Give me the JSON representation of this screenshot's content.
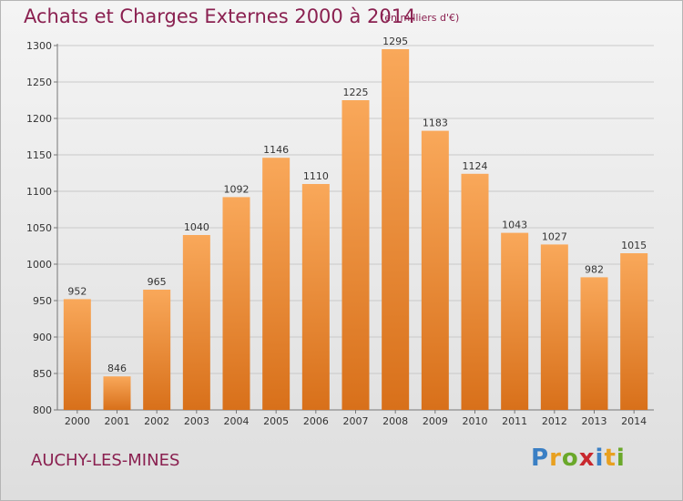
{
  "header": {
    "title": "Achats et Charges Externes 2000 à 2014",
    "subtitle": "(en milliers d'€)"
  },
  "footer": {
    "location": "AUCHY-LES-MINES",
    "logo": {
      "p": "P",
      "r": "r",
      "o": "o",
      "x": "x",
      "i1": "i",
      "t": "t",
      "i2": "i"
    }
  },
  "colors": {
    "bar_top": "#f9a85a",
    "bar_bottom": "#d8701a",
    "title": "#8a2050",
    "grid": "#c9c9c9"
  },
  "chart_data": {
    "type": "bar",
    "title": "Achats et Charges Externes 2000 à 2014",
    "subtitle": "(en milliers d'€)",
    "categories": [
      "2000",
      "2001",
      "2002",
      "2003",
      "2004",
      "2005",
      "2006",
      "2007",
      "2008",
      "2009",
      "2010",
      "2011",
      "2012",
      "2013",
      "2014"
    ],
    "values": [
      952,
      846,
      965,
      1040,
      1092,
      1146,
      1110,
      1225,
      1295,
      1183,
      1124,
      1043,
      1027,
      982,
      1015
    ],
    "yticks": [
      800,
      850,
      900,
      950,
      1000,
      1050,
      1100,
      1150,
      1200,
      1250,
      1300
    ],
    "ylim": [
      800,
      1300
    ],
    "grid": true,
    "xlabel": "",
    "ylabel": ""
  }
}
